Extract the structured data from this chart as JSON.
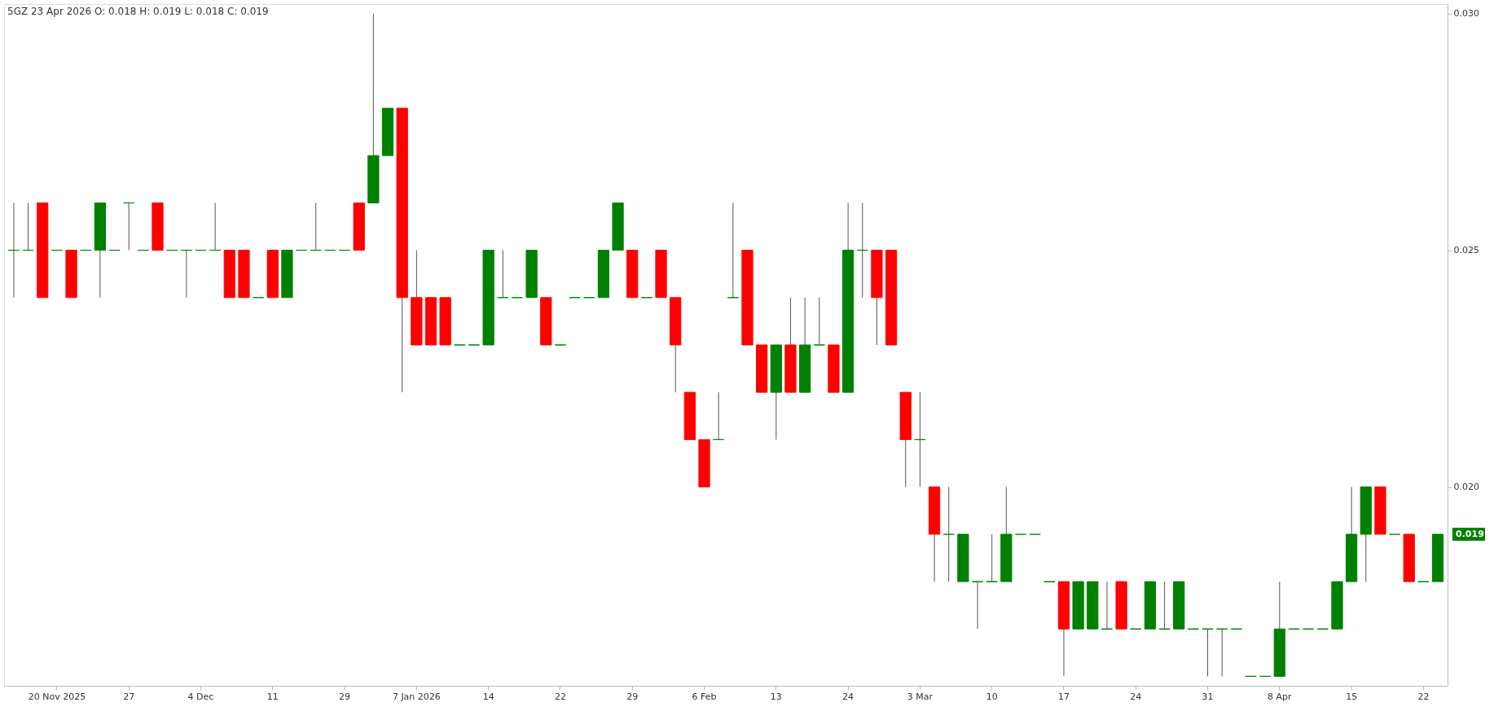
{
  "chart_data": {
    "type": "candlestick",
    "title": "5GZ   23 Apr 2026   O: 0.018  H: 0.019  L: 0.018  C: 0.019",
    "categories": [
      null,
      null,
      null,
      "20 Nov 2025",
      null,
      null,
      null,
      null,
      "27",
      null,
      null,
      null,
      null,
      "4 Dec",
      null,
      null,
      null,
      null,
      "11",
      null,
      null,
      null,
      null,
      "29",
      null,
      null,
      null,
      null,
      "7 Jan 2026",
      null,
      null,
      null,
      null,
      "14",
      null,
      null,
      null,
      null,
      "22",
      null,
      null,
      null,
      null,
      "29",
      null,
      null,
      null,
      null,
      "6 Feb",
      null,
      null,
      null,
      null,
      "13",
      null,
      null,
      null,
      null,
      "24",
      null,
      null,
      null,
      null,
      "3 Mar",
      null,
      null,
      null,
      null,
      "10",
      null,
      null,
      null,
      null,
      "17",
      null,
      null,
      null,
      null,
      "24",
      null,
      null,
      null,
      null,
      "31",
      null,
      null,
      null,
      null,
      "8 Apr",
      null,
      null,
      null,
      null,
      "15",
      null,
      null,
      null,
      null,
      "22",
      null
    ],
    "ohlc": [
      [
        0.025,
        0.026,
        0.024,
        0.025
      ],
      [
        0.025,
        0.026,
        0.025,
        0.025
      ],
      [
        0.026,
        0.026,
        0.024,
        0.024
      ],
      [
        0.025,
        0.025,
        0.025,
        0.025
      ],
      [
        0.025,
        0.025,
        0.024,
        0.024
      ],
      [
        0.025,
        0.025,
        0.025,
        0.025
      ],
      [
        0.025,
        0.026,
        0.024,
        0.026
      ],
      [
        0.025,
        0.025,
        0.025,
        0.025
      ],
      [
        0.026,
        0.026,
        0.025,
        0.026
      ],
      [
        0.025,
        0.025,
        0.025,
        0.025
      ],
      [
        0.026,
        0.026,
        0.025,
        0.025
      ],
      [
        0.025,
        0.025,
        0.025,
        0.025
      ],
      [
        0.025,
        0.025,
        0.024,
        0.025
      ],
      [
        0.025,
        0.025,
        0.025,
        0.025
      ],
      [
        0.025,
        0.026,
        0.025,
        0.025
      ],
      [
        0.025,
        0.025,
        0.024,
        0.024
      ],
      [
        0.025,
        0.025,
        0.024,
        0.024
      ],
      [
        0.024,
        0.024,
        0.024,
        0.024
      ],
      [
        0.025,
        0.025,
        0.024,
        0.024
      ],
      [
        0.024,
        0.025,
        0.024,
        0.025
      ],
      [
        0.025,
        0.025,
        0.025,
        0.025
      ],
      [
        0.025,
        0.026,
        0.025,
        0.025
      ],
      [
        0.025,
        0.025,
        0.025,
        0.025
      ],
      [
        0.025,
        0.025,
        0.025,
        0.025
      ],
      [
        0.026,
        0.026,
        0.025,
        0.025
      ],
      [
        0.026,
        0.03,
        0.026,
        0.027
      ],
      [
        0.027,
        0.028,
        0.027,
        0.028
      ],
      [
        0.028,
        0.028,
        0.022,
        0.024
      ],
      [
        0.024,
        0.025,
        0.023,
        0.023
      ],
      [
        0.024,
        0.024,
        0.023,
        0.023
      ],
      [
        0.024,
        0.024,
        0.023,
        0.023
      ],
      [
        0.023,
        0.023,
        0.023,
        0.023
      ],
      [
        0.023,
        0.023,
        0.023,
        0.023
      ],
      [
        0.023,
        0.025,
        0.023,
        0.025
      ],
      [
        0.024,
        0.025,
        0.024,
        0.024
      ],
      [
        0.024,
        0.024,
        0.024,
        0.024
      ],
      [
        0.024,
        0.025,
        0.024,
        0.025
      ],
      [
        0.024,
        0.024,
        0.023,
        0.023
      ],
      [
        0.023,
        0.023,
        0.023,
        0.023
      ],
      [
        0.024,
        0.024,
        0.024,
        0.024
      ],
      [
        0.024,
        0.024,
        0.024,
        0.024
      ],
      [
        0.024,
        0.025,
        0.024,
        0.025
      ],
      [
        0.025,
        0.026,
        0.025,
        0.026
      ],
      [
        0.025,
        0.025,
        0.024,
        0.024
      ],
      [
        0.024,
        0.024,
        0.024,
        0.024
      ],
      [
        0.025,
        0.025,
        0.024,
        0.024
      ],
      [
        0.024,
        0.024,
        0.022,
        0.023
      ],
      [
        0.022,
        0.022,
        0.021,
        0.021
      ],
      [
        0.021,
        0.021,
        0.02,
        0.02
      ],
      [
        0.021,
        0.022,
        0.021,
        0.021
      ],
      [
        0.024,
        0.026,
        0.024,
        0.024
      ],
      [
        0.025,
        0.025,
        0.023,
        0.023
      ],
      [
        0.023,
        0.023,
        0.022,
        0.022
      ],
      [
        0.022,
        0.023,
        0.021,
        0.023
      ],
      [
        0.023,
        0.024,
        0.022,
        0.022
      ],
      [
        0.022,
        0.024,
        0.022,
        0.023
      ],
      [
        0.023,
        0.024,
        0.023,
        0.023
      ],
      [
        0.023,
        0.023,
        0.022,
        0.022
      ],
      [
        0.022,
        0.026,
        0.022,
        0.025
      ],
      [
        0.025,
        0.026,
        0.024,
        0.025
      ],
      [
        0.025,
        0.025,
        0.023,
        0.024
      ],
      [
        0.025,
        0.025,
        0.023,
        0.023
      ],
      [
        0.022,
        0.022,
        0.02,
        0.021
      ],
      [
        0.021,
        0.022,
        0.02,
        0.021
      ],
      [
        0.02,
        0.02,
        0.018,
        0.019
      ],
      [
        0.019,
        0.02,
        0.018,
        0.019
      ],
      [
        0.018,
        0.019,
        0.018,
        0.019
      ],
      [
        0.018,
        0.018,
        0.017,
        0.018
      ],
      [
        0.018,
        0.019,
        0.018,
        0.018
      ],
      [
        0.018,
        0.02,
        0.018,
        0.019
      ],
      [
        0.019,
        0.019,
        0.019,
        0.019
      ],
      [
        0.019,
        0.019,
        0.019,
        0.019
      ],
      [
        0.018,
        0.018,
        0.018,
        0.018
      ],
      [
        0.018,
        0.018,
        0.016,
        0.017
      ],
      [
        0.017,
        0.018,
        0.017,
        0.018
      ],
      [
        0.017,
        0.018,
        0.017,
        0.018
      ],
      [
        0.017,
        0.018,
        0.017,
        0.017
      ],
      [
        0.018,
        0.018,
        0.017,
        0.017
      ],
      [
        0.017,
        0.017,
        0.017,
        0.017
      ],
      [
        0.017,
        0.018,
        0.017,
        0.018
      ],
      [
        0.017,
        0.018,
        0.017,
        0.017
      ],
      [
        0.017,
        0.018,
        0.017,
        0.018
      ],
      [
        0.017,
        0.017,
        0.017,
        0.017
      ],
      [
        0.017,
        0.017,
        0.016,
        0.017
      ],
      [
        0.017,
        0.017,
        0.016,
        0.017
      ],
      [
        0.017,
        0.017,
        0.017,
        0.017
      ],
      [
        0.016,
        0.016,
        0.016,
        0.016
      ],
      [
        0.016,
        0.016,
        0.016,
        0.016
      ],
      [
        0.016,
        0.018,
        0.016,
        0.017
      ],
      [
        0.017,
        0.017,
        0.017,
        0.017
      ],
      [
        0.017,
        0.017,
        0.017,
        0.017
      ],
      [
        0.017,
        0.017,
        0.017,
        0.017
      ],
      [
        0.017,
        0.018,
        0.017,
        0.018
      ],
      [
        0.018,
        0.02,
        0.018,
        0.019
      ],
      [
        0.019,
        0.02,
        0.018,
        0.02
      ],
      [
        0.02,
        0.02,
        0.019,
        0.019
      ],
      [
        0.019,
        0.019,
        0.019,
        0.019
      ],
      [
        0.019,
        0.019,
        0.018,
        0.018
      ],
      [
        0.018,
        0.018,
        0.018,
        0.018
      ],
      [
        0.018,
        0.019,
        0.018,
        0.019
      ]
    ],
    "colors": [
      "#008000",
      "#008000",
      "#ff0000",
      "#008000",
      "#ff0000",
      "#008000",
      "#008000",
      "#008000",
      "#008000",
      "#008000",
      "#ff0000",
      "#008000",
      "#008000",
      "#008000",
      "#008000",
      "#ff0000",
      "#ff0000",
      "#008000",
      "#ff0000",
      "#008000",
      "#008000",
      "#008000",
      "#008000",
      "#008000",
      "#ff0000",
      "#008000",
      "#008000",
      "#ff0000",
      "#ff0000",
      "#ff0000",
      "#ff0000",
      "#008000",
      "#008000",
      "#008000",
      "#008000",
      "#008000",
      "#008000",
      "#ff0000",
      "#008000",
      "#008000",
      "#008000",
      "#008000",
      "#008000",
      "#ff0000",
      "#008000",
      "#ff0000",
      "#ff0000",
      "#ff0000",
      "#ff0000",
      "#008000",
      "#008000",
      "#ff0000",
      "#ff0000",
      "#008000",
      "#ff0000",
      "#008000",
      "#008000",
      "#ff0000",
      "#008000",
      "#008000",
      "#ff0000",
      "#ff0000",
      "#ff0000",
      "#008000",
      "#ff0000",
      "#008000",
      "#008000",
      "#008000",
      "#008000",
      "#008000",
      "#008000",
      "#008000",
      "#008000",
      "#ff0000",
      "#008000",
      "#008000",
      "#008000",
      "#ff0000",
      "#008000",
      "#008000",
      "#008000",
      "#008000",
      "#008000",
      "#008000",
      "#008000",
      "#008000",
      "#008000",
      "#008000",
      "#008000",
      "#008000",
      "#008000",
      "#008000",
      "#008000",
      "#008000",
      "#008000",
      "#ff0000",
      "#008000",
      "#ff0000",
      "#008000",
      "#008000"
    ],
    "ylim": [
      0.0158,
      0.0302
    ],
    "yticks": [
      {
        "value": 0.02,
        "label": "0.020"
      },
      {
        "value": 0.025,
        "label": "0.025"
      },
      {
        "value": 0.03,
        "label": "0.030"
      }
    ],
    "annotations": [
      "0.019"
    ],
    "grid": false
  }
}
